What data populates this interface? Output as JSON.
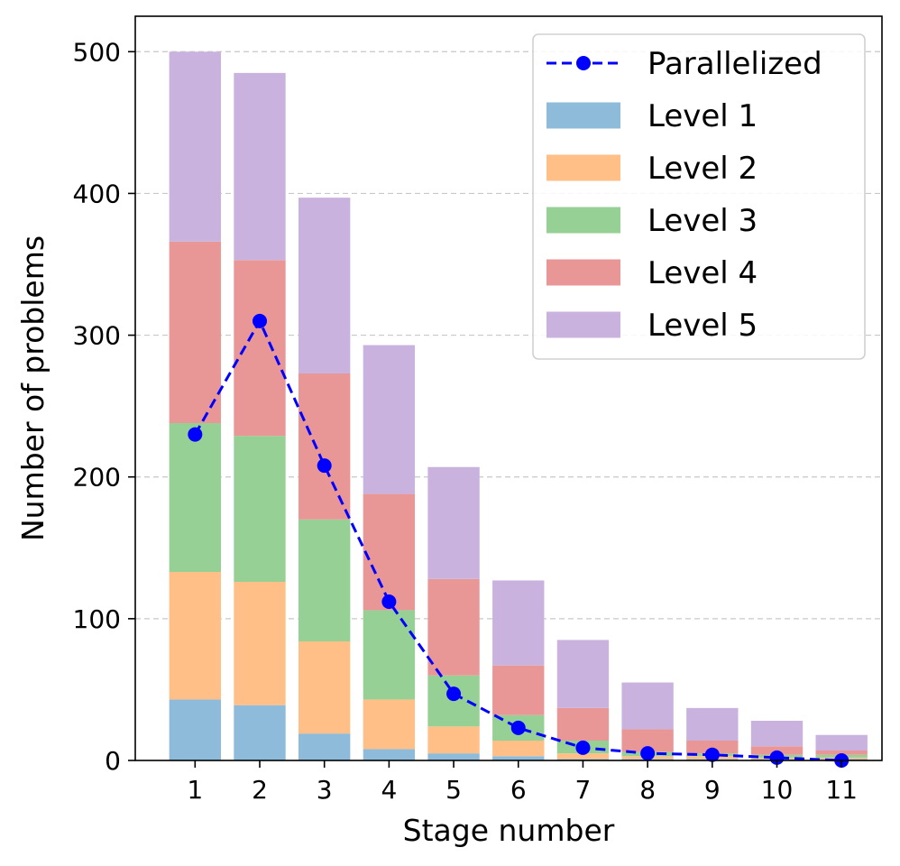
{
  "chart_data": {
    "type": "bar",
    "stacked": true,
    "xlabel": "Stage number",
    "ylabel": "Number of problems",
    "ylim": [
      0,
      525
    ],
    "yticks": [
      0,
      100,
      200,
      300,
      400,
      500
    ],
    "grid": "y-dashed",
    "legend_position": "top-right",
    "categories": [
      "1",
      "2",
      "3",
      "4",
      "5",
      "6",
      "7",
      "8",
      "9",
      "10",
      "11"
    ],
    "series": [
      {
        "name": "Level 1",
        "color": "#8fbbda",
        "values": [
          43,
          39,
          19,
          8,
          5,
          3,
          1,
          1,
          1,
          1,
          1
        ]
      },
      {
        "name": "Level 2",
        "color": "#ffbf86",
        "values": [
          90,
          87,
          65,
          35,
          19,
          11,
          4,
          2,
          2,
          1,
          1
        ]
      },
      {
        "name": "Level 3",
        "color": "#96d095",
        "values": [
          105,
          103,
          86,
          63,
          36,
          18,
          9,
          3,
          2,
          2,
          2
        ]
      },
      {
        "name": "Level 4",
        "color": "#e99796",
        "values": [
          128,
          124,
          103,
          82,
          68,
          35,
          23,
          16,
          9,
          6,
          3
        ]
      },
      {
        "name": "Level 5",
        "color": "#c9b3de",
        "values": [
          134,
          132,
          124,
          105,
          79,
          60,
          48,
          33,
          23,
          18,
          11
        ]
      }
    ],
    "line_series": {
      "name": "Parallelized",
      "color": "#0000ff",
      "style": "dashed",
      "marker": "circle",
      "values": [
        230,
        310,
        208,
        112,
        47,
        23,
        9,
        5,
        4,
        2,
        0
      ]
    }
  }
}
